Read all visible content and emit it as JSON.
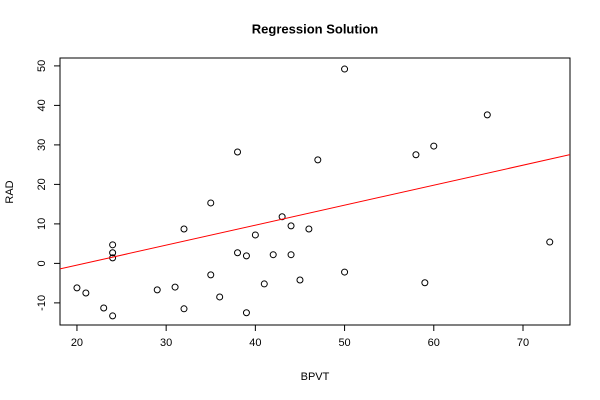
{
  "chart_data": {
    "type": "scatter",
    "title": "Regression Solution",
    "x_label": "BPVT",
    "y_label": "RAD",
    "x": [
      20,
      21,
      23,
      24,
      24,
      24,
      24,
      29,
      31,
      32,
      32,
      35,
      35,
      36,
      38,
      38,
      39,
      39,
      40,
      41,
      42,
      43,
      44,
      44,
      45,
      46,
      47,
      50,
      50,
      58,
      59,
      60,
      66,
      73
    ],
    "values": [
      -6.2,
      -7.5,
      -11.3,
      -13.3,
      1.4,
      2.7,
      4.7,
      -6.7,
      -6.0,
      8.7,
      -11.5,
      15.3,
      -2.9,
      -8.5,
      28.2,
      2.7,
      1.9,
      -12.5,
      7.2,
      -5.2,
      2.2,
      11.8,
      9.5,
      2.2,
      -4.2,
      8.7,
      26.2,
      49.2,
      -2.2,
      27.5,
      -4.9,
      29.7,
      37.6,
      5.4
    ],
    "color": "#000000",
    "regression": {
      "intercept": -10.56,
      "slope": 0.506,
      "color": "#ff0000"
    },
    "xlim": [
      18.1,
      75.27
    ],
    "ylim": [
      -15.6,
      52.0
    ],
    "xticks": [
      20,
      30,
      40,
      50,
      60,
      70
    ],
    "yticks": [
      -10,
      0,
      10,
      20,
      30,
      40,
      50
    ]
  }
}
